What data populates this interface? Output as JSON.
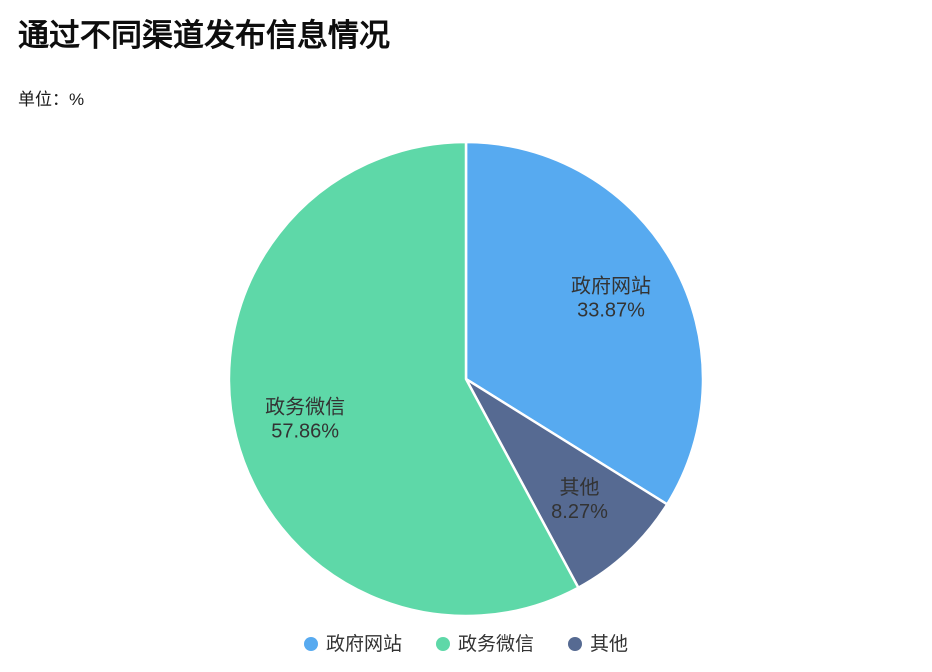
{
  "header": {
    "title": "通过不同渠道发布信息情况",
    "unit_label": "单位：%"
  },
  "chart_data": {
    "type": "pie",
    "title": "通过不同渠道发布信息情况",
    "unit": "%",
    "start_angle": "12-oclock",
    "direction": "clockwise",
    "slices": [
      {
        "name": "政府网站",
        "value": 33.87,
        "percent_label": "33.87%",
        "color": "#57aaf0"
      },
      {
        "name": "其他",
        "value": 8.27,
        "percent_label": "8.27%",
        "color": "#566a92"
      },
      {
        "name": "政务微信",
        "value": 57.86,
        "percent_label": "57.86%",
        "color": "#5ed8a8"
      }
    ],
    "label_color": "#333333",
    "slice_border_color": "#ffffff",
    "legend": {
      "position": "bottom",
      "items": [
        "政府网站",
        "政务微信",
        "其他"
      ]
    }
  }
}
